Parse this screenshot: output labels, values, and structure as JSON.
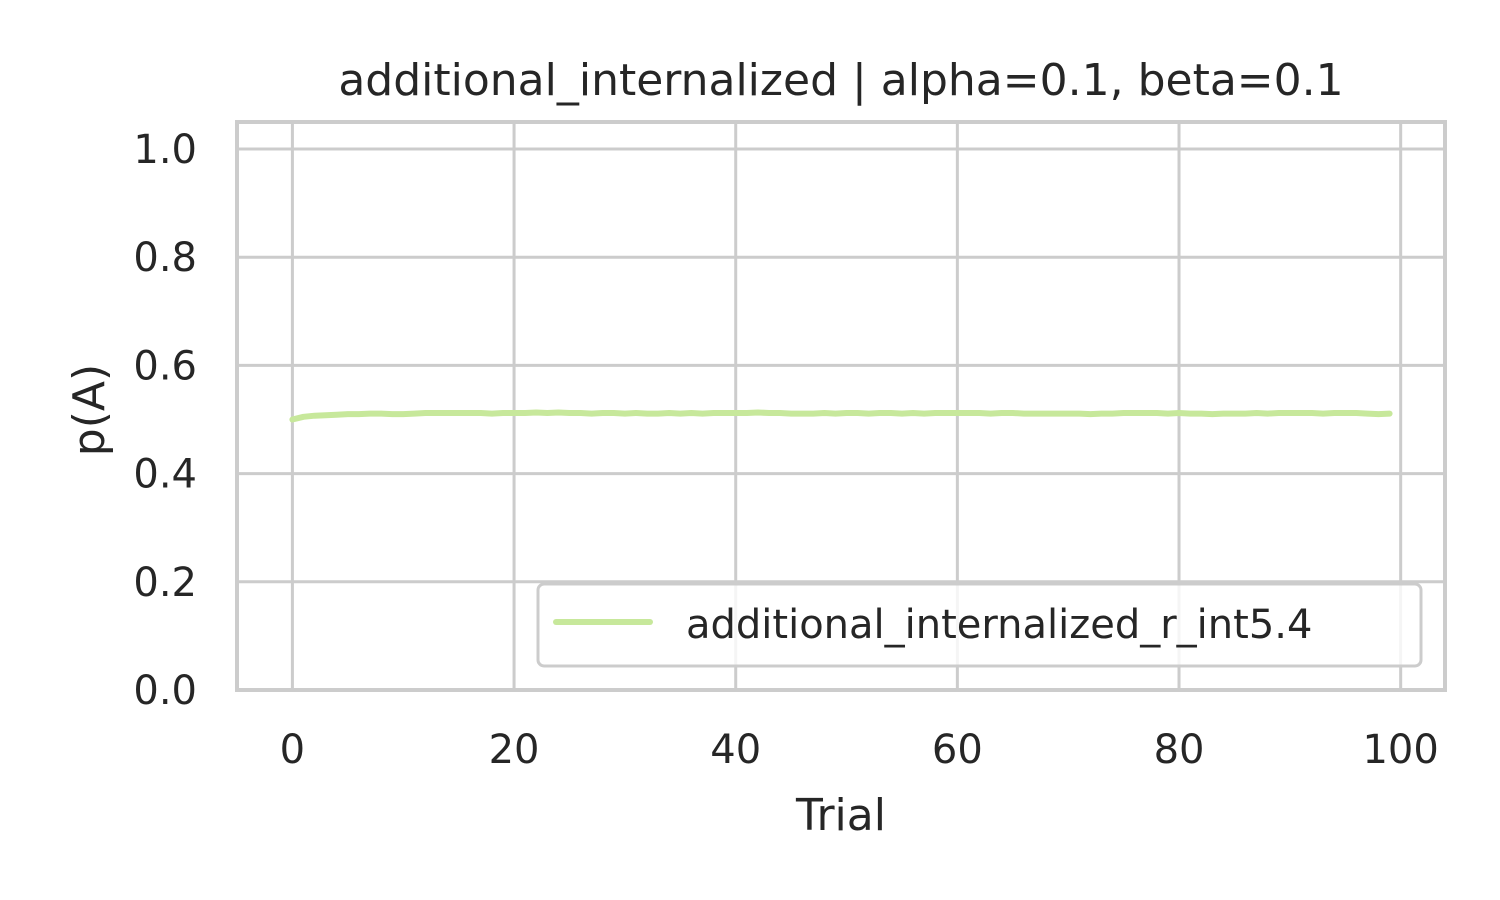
{
  "chart_data": {
    "type": "line",
    "title": "additional_internalized | alpha=0.1, beta=0.1",
    "xlabel": "Trial",
    "ylabel": "p(A)",
    "xlim": [
      -5,
      104
    ],
    "ylim": [
      0.0,
      1.05
    ],
    "xticks": [
      0,
      20,
      40,
      60,
      80,
      100
    ],
    "xtick_labels": [
      "0",
      "20",
      "40",
      "60",
      "80",
      "100"
    ],
    "yticks": [
      0.0,
      0.2,
      0.4,
      0.6,
      0.8,
      1.0
    ],
    "ytick_labels": [
      "0.0",
      "0.2",
      "0.4",
      "0.6",
      "0.8",
      "1.0"
    ],
    "grid": true,
    "legend_position": "lower-right",
    "series": [
      {
        "name": "additional_internalized_r_int5.4",
        "color": "#c7e89b",
        "x": [
          0,
          1,
          2,
          3,
          4,
          5,
          6,
          7,
          8,
          9,
          10,
          11,
          12,
          13,
          14,
          15,
          16,
          17,
          18,
          19,
          20,
          21,
          22,
          23,
          24,
          25,
          26,
          27,
          28,
          29,
          30,
          31,
          32,
          33,
          34,
          35,
          36,
          37,
          38,
          39,
          40,
          41,
          42,
          43,
          44,
          45,
          46,
          47,
          48,
          49,
          50,
          51,
          52,
          53,
          54,
          55,
          56,
          57,
          58,
          59,
          60,
          61,
          62,
          63,
          64,
          65,
          66,
          67,
          68,
          69,
          70,
          71,
          72,
          73,
          74,
          75,
          76,
          77,
          78,
          79,
          80,
          81,
          82,
          83,
          84,
          85,
          86,
          87,
          88,
          89,
          90,
          91,
          92,
          93,
          94,
          95,
          96,
          97,
          98,
          99
        ],
        "y": [
          0.5,
          0.505,
          0.507,
          0.508,
          0.509,
          0.51,
          0.51,
          0.511,
          0.511,
          0.51,
          0.51,
          0.511,
          0.512,
          0.512,
          0.512,
          0.512,
          0.512,
          0.512,
          0.511,
          0.512,
          0.512,
          0.512,
          0.513,
          0.512,
          0.513,
          0.512,
          0.512,
          0.511,
          0.512,
          0.512,
          0.511,
          0.512,
          0.511,
          0.511,
          0.512,
          0.511,
          0.512,
          0.511,
          0.512,
          0.512,
          0.512,
          0.512,
          0.513,
          0.512,
          0.512,
          0.511,
          0.511,
          0.511,
          0.512,
          0.511,
          0.512,
          0.512,
          0.511,
          0.512,
          0.512,
          0.511,
          0.512,
          0.511,
          0.512,
          0.512,
          0.512,
          0.512,
          0.512,
          0.511,
          0.512,
          0.512,
          0.511,
          0.511,
          0.511,
          0.511,
          0.511,
          0.511,
          0.51,
          0.511,
          0.511,
          0.512,
          0.512,
          0.512,
          0.512,
          0.511,
          0.512,
          0.511,
          0.511,
          0.51,
          0.511,
          0.511,
          0.511,
          0.512,
          0.511,
          0.512,
          0.512,
          0.512,
          0.512,
          0.511,
          0.512,
          0.512,
          0.512,
          0.511,
          0.51,
          0.511
        ]
      }
    ]
  }
}
